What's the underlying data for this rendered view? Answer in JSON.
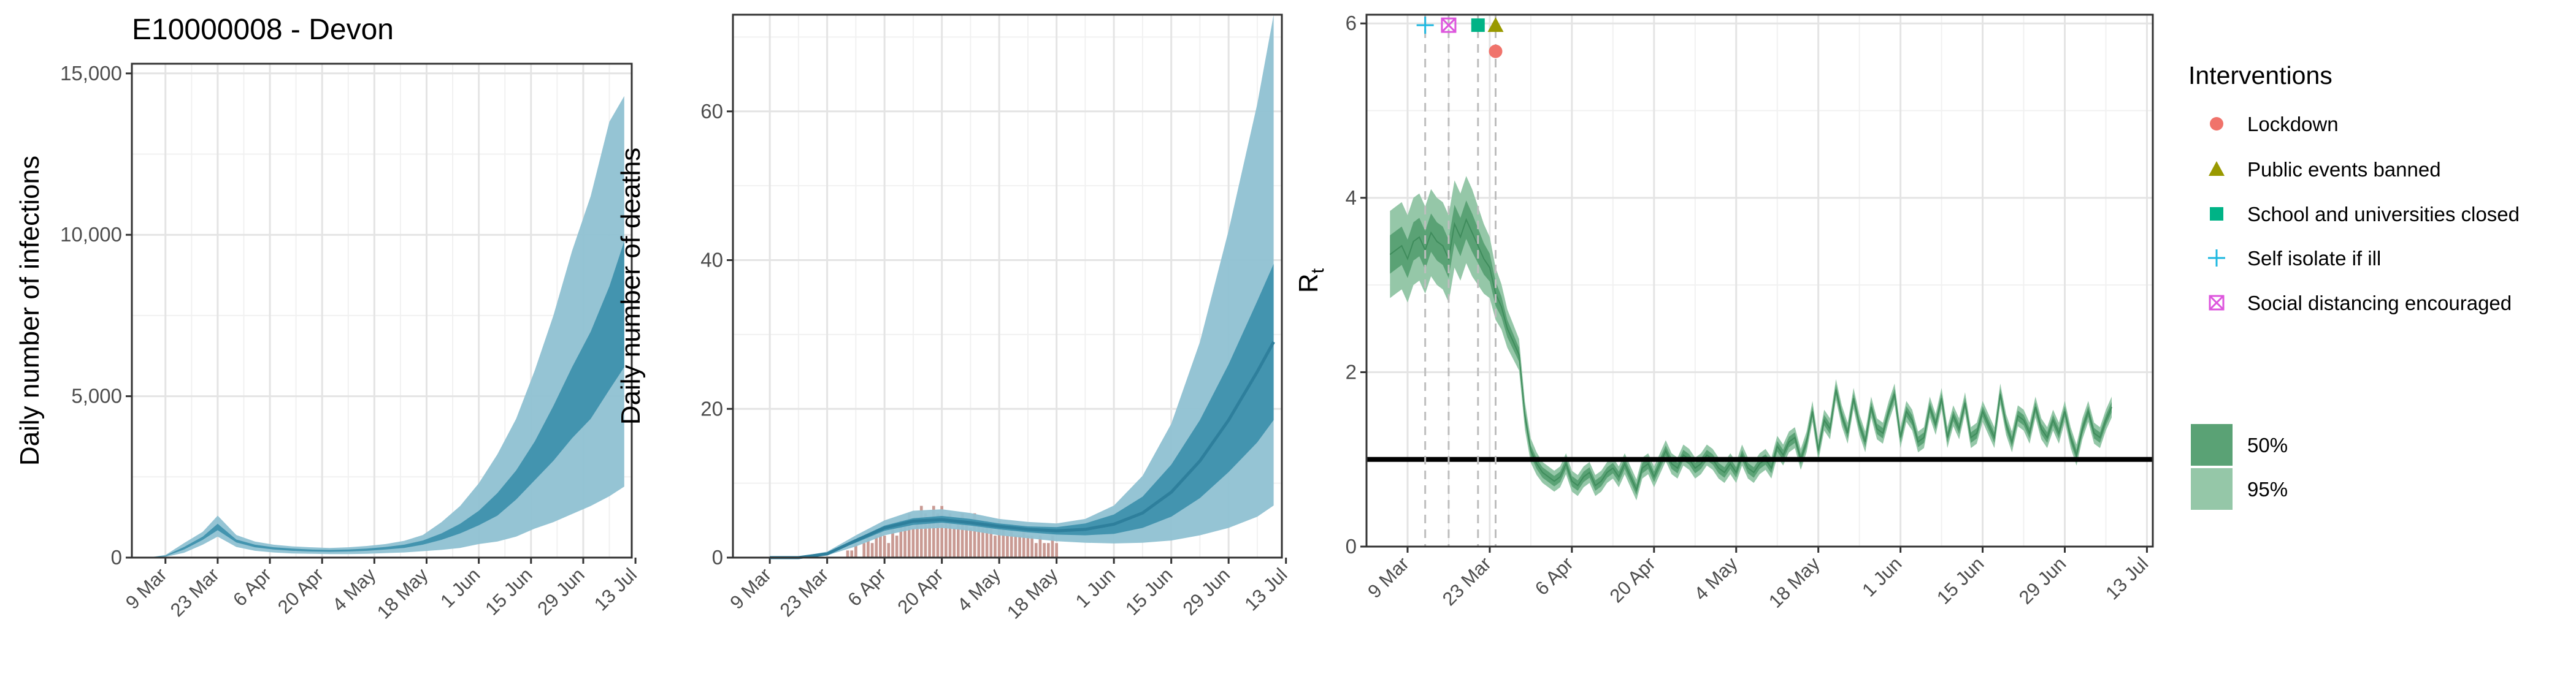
{
  "title": "E10000008 - Devon",
  "colors": {
    "infections_95": "#8fc1d2",
    "infections_50": "#3a8fab",
    "infections_line": "#2e7f9c",
    "deaths_95": "#8fc1d2",
    "deaths_50": "#3a8fab",
    "deaths_bar": "#c99a93",
    "rt_95": "#95c7a8",
    "rt_50": "#5aa275",
    "rt_line": "#3f8c5c",
    "panel_border": "#333333",
    "grid_major": "#e4e4e4",
    "grid_minor": "#f1f1f1",
    "lockdown": "#f0736b",
    "public_events": "#999900",
    "school": "#00b386",
    "self_isolate": "#1fb8e0",
    "social_distancing": "#dd55dd"
  },
  "chart_data": [
    {
      "id": "infections",
      "type": "area",
      "ylabel": "Daily number of infections",
      "xlabel": "",
      "x_tick_labels": [
        "9 Mar",
        "23 Mar",
        "6 Apr",
        "20 Apr",
        "4 May",
        "18 May",
        "1 Jun",
        "15 Jun",
        "29 Jun",
        "13 Jul"
      ],
      "y_tick_labels": [
        "0",
        "5,000",
        "10,000",
        "15,000"
      ],
      "xlim": [
        "2020-02-29",
        "2020-07-12"
      ],
      "ylim": [
        0,
        15300
      ],
      "grid": true,
      "x_dates": [
        "2020-03-04",
        "2020-03-09",
        "2020-03-14",
        "2020-03-19",
        "2020-03-23",
        "2020-03-28",
        "2020-04-02",
        "2020-04-07",
        "2020-04-12",
        "2020-04-17",
        "2020-04-22",
        "2020-04-27",
        "2020-05-02",
        "2020-05-07",
        "2020-05-12",
        "2020-05-17",
        "2020-05-22",
        "2020-05-27",
        "2020-06-01",
        "2020-06-06",
        "2020-06-11",
        "2020-06-16",
        "2020-06-21",
        "2020-06-26",
        "2020-07-01",
        "2020-07-06",
        "2020-07-10"
      ],
      "series": [
        {
          "band": "95%",
          "lower": [
            0,
            20,
            150,
            400,
            650,
            330,
            210,
            160,
            130,
            120,
            110,
            110,
            120,
            140,
            160,
            200,
            240,
            300,
            420,
            500,
            650,
            900,
            1100,
            1350,
            1600,
            1900,
            2200
          ],
          "upper": [
            0,
            80,
            450,
            800,
            1300,
            700,
            500,
            400,
            350,
            320,
            300,
            320,
            360,
            420,
            520,
            700,
            1100,
            1600,
            2300,
            3200,
            4300,
            5800,
            7500,
            9500,
            11200,
            13500,
            14300
          ]
        },
        {
          "band": "50%",
          "lower": [
            0,
            40,
            250,
            550,
            850,
            470,
            320,
            250,
            210,
            190,
            180,
            190,
            210,
            250,
            300,
            400,
            550,
            750,
            1000,
            1300,
            1800,
            2400,
            3000,
            3700,
            4300,
            5200,
            5900
          ],
          "upper": [
            0,
            60,
            330,
            650,
            1050,
            560,
            400,
            320,
            280,
            250,
            240,
            250,
            280,
            330,
            400,
            530,
            750,
            1050,
            1450,
            2000,
            2700,
            3600,
            4700,
            5900,
            7000,
            8400,
            9800
          ]
        }
      ]
    },
    {
      "id": "deaths",
      "type": "area",
      "ylabel": "Daily number of deaths",
      "xlabel": "",
      "x_tick_labels": [
        "9 Mar",
        "23 Mar",
        "6 Apr",
        "20 Apr",
        "4 May",
        "18 May",
        "1 Jun",
        "15 Jun",
        "29 Jun",
        "13 Jul"
      ],
      "y_tick_labels": [
        "0",
        "20",
        "40",
        "60"
      ],
      "xlim": [
        "2020-02-29",
        "2020-07-12"
      ],
      "ylim": [
        0,
        73
      ],
      "grid": true,
      "x_dates": [
        "2020-03-09",
        "2020-03-16",
        "2020-03-23",
        "2020-03-30",
        "2020-04-06",
        "2020-04-13",
        "2020-04-20",
        "2020-04-27",
        "2020-05-04",
        "2020-05-11",
        "2020-05-18",
        "2020-05-25",
        "2020-06-01",
        "2020-06-08",
        "2020-06-15",
        "2020-06-22",
        "2020-06-29",
        "2020-07-06",
        "2020-07-10"
      ],
      "series": [
        {
          "band": "95%",
          "lower": [
            0,
            0,
            0.3,
            1.5,
            3,
            3.8,
            4,
            3.6,
            3,
            2.6,
            2.2,
            2,
            1.9,
            2,
            2.3,
            3,
            4,
            5.5,
            7
          ],
          "upper": [
            0,
            0.1,
            0.8,
            3,
            5,
            6.3,
            6.5,
            6,
            5.2,
            4.8,
            4.6,
            5.2,
            7,
            11,
            18,
            29,
            44,
            61,
            73
          ]
        },
        {
          "band": "50%",
          "lower": [
            0,
            0,
            0.5,
            2,
            3.6,
            4.4,
            4.7,
            4.3,
            3.8,
            3.4,
            3.1,
            3,
            3.2,
            4,
            5.5,
            8,
            11.5,
            15.5,
            18.5
          ],
          "upper": [
            0,
            0,
            0.6,
            2.5,
            4.3,
            5.3,
            5.6,
            5.2,
            4.6,
            4.2,
            4.1,
            4.6,
            5.8,
            8.2,
            12.5,
            18.5,
            26,
            34.5,
            39.5
          ]
        },
        {
          "band": "median",
          "values": [
            0,
            0,
            0.5,
            2.3,
            4,
            4.9,
            5.1,
            4.7,
            4.2,
            3.8,
            3.6,
            3.8,
            4.5,
            6,
            8.8,
            13,
            18.5,
            25,
            29
          ]
        }
      ],
      "bars_observed": {
        "start": "2020-03-28",
        "values": [
          1,
          1,
          2,
          0,
          2,
          3,
          2,
          3,
          4,
          3,
          2,
          4,
          3,
          5,
          5,
          6,
          4,
          5,
          7,
          6,
          5,
          7,
          6,
          7,
          5,
          6,
          4,
          5,
          6,
          5,
          4,
          6,
          5,
          4,
          5,
          4,
          3,
          5,
          4,
          3,
          4,
          3,
          3,
          4,
          3,
          3,
          2,
          3,
          2,
          2,
          3,
          2
        ]
      }
    },
    {
      "id": "rt",
      "type": "line",
      "ylabel": "R",
      "ylabel_sub": "t",
      "xlabel": "",
      "x_tick_labels": [
        "9 Mar",
        "23 Mar",
        "6 Apr",
        "20 Apr",
        "4 May",
        "18 May",
        "1 Jun",
        "15 Jun",
        "29 Jun",
        "13 Jul"
      ],
      "y_tick_labels": [
        "0",
        "2",
        "4",
        "6"
      ],
      "xlim": [
        "2020-03-02",
        "2020-07-14"
      ],
      "ylim": [
        0,
        6.1
      ],
      "grid": true,
      "reference_line": 1,
      "rt_start": "2020-03-06",
      "rt_median": [
        3.35,
        3.4,
        3.45,
        3.3,
        3.5,
        3.55,
        3.4,
        3.6,
        3.5,
        3.45,
        3.3,
        3.7,
        3.55,
        3.75,
        3.6,
        3.45,
        3.3,
        3.2,
        2.9,
        2.75,
        2.5,
        2.35,
        2.2,
        1.5,
        1.1,
        0.95,
        0.85,
        0.8,
        0.75,
        0.8,
        0.95,
        0.75,
        0.7,
        0.8,
        0.85,
        0.7,
        0.75,
        0.85,
        0.9,
        0.8,
        0.95,
        0.8,
        0.65,
        0.9,
        0.95,
        0.8,
        0.95,
        1.1,
        0.95,
        0.9,
        1.05,
        1.0,
        0.9,
        0.95,
        1.05,
        1.0,
        0.9,
        0.85,
        0.95,
        0.85,
        1.05,
        0.9,
        0.85,
        0.95,
        1.0,
        0.9,
        1.15,
        1.05,
        1.2,
        1.25,
        1.0,
        1.2,
        1.55,
        1.1,
        1.45,
        1.35,
        1.8,
        1.5,
        1.3,
        1.7,
        1.4,
        1.2,
        1.6,
        1.35,
        1.3,
        1.55,
        1.75,
        1.25,
        1.55,
        1.45,
        1.2,
        1.25,
        1.6,
        1.4,
        1.7,
        1.25,
        1.5,
        1.35,
        1.65,
        1.25,
        1.3,
        1.55,
        1.4,
        1.25,
        1.75,
        1.4,
        1.2,
        1.5,
        1.45,
        1.3,
        1.6,
        1.35,
        1.25,
        1.45,
        1.3,
        1.55,
        1.25,
        1.05,
        1.35,
        1.55,
        1.3,
        1.25,
        1.45,
        1.6
      ],
      "band_50_halfwidth": [
        0.22,
        0.22,
        0.22,
        0.22,
        0.22,
        0.22,
        0.22,
        0.22,
        0.22,
        0.22,
        0.22,
        0.22,
        0.22,
        0.22,
        0.22,
        0.2,
        0.18,
        0.16,
        0.14,
        0.12,
        0.1,
        0.09,
        0.08,
        0.07,
        0.06,
        0.06,
        0.06,
        0.06,
        0.06,
        0.06,
        0.06,
        0.06,
        0.06,
        0.06,
        0.06,
        0.06,
        0.06,
        0.06,
        0.06,
        0.06,
        0.06,
        0.06,
        0.06,
        0.06,
        0.06,
        0.06,
        0.06,
        0.06,
        0.06,
        0.06,
        0.06,
        0.06,
        0.06,
        0.06,
        0.06,
        0.06,
        0.06,
        0.06,
        0.06,
        0.06,
        0.06,
        0.06,
        0.06,
        0.06,
        0.06,
        0.06,
        0.06,
        0.06,
        0.06,
        0.06,
        0.06,
        0.06,
        0.06,
        0.06,
        0.06,
        0.06,
        0.06,
        0.06,
        0.06,
        0.06,
        0.06,
        0.06,
        0.06,
        0.06,
        0.06,
        0.06,
        0.06,
        0.06,
        0.06,
        0.06,
        0.06,
        0.06,
        0.06,
        0.06,
        0.06,
        0.06,
        0.06,
        0.06,
        0.06,
        0.06,
        0.06,
        0.06,
        0.06,
        0.06,
        0.06,
        0.06,
        0.06,
        0.06,
        0.06,
        0.06,
        0.06,
        0.06,
        0.06,
        0.06,
        0.06,
        0.06,
        0.06,
        0.06,
        0.06,
        0.06,
        0.06,
        0.06,
        0.06,
        0.06
      ],
      "band_95_halfwidth": [
        0.5,
        0.5,
        0.5,
        0.5,
        0.5,
        0.5,
        0.5,
        0.5,
        0.5,
        0.5,
        0.5,
        0.5,
        0.5,
        0.5,
        0.5,
        0.45,
        0.4,
        0.35,
        0.3,
        0.26,
        0.22,
        0.2,
        0.18,
        0.16,
        0.14,
        0.13,
        0.12,
        0.12,
        0.12,
        0.12,
        0.12,
        0.12,
        0.12,
        0.12,
        0.12,
        0.12,
        0.12,
        0.12,
        0.12,
        0.12,
        0.12,
        0.12,
        0.12,
        0.12,
        0.12,
        0.12,
        0.12,
        0.12,
        0.12,
        0.12,
        0.12,
        0.12,
        0.12,
        0.12,
        0.12,
        0.12,
        0.12,
        0.12,
        0.12,
        0.12,
        0.12,
        0.12,
        0.12,
        0.12,
        0.12,
        0.12,
        0.12,
        0.12,
        0.12,
        0.12,
        0.12,
        0.12,
        0.12,
        0.12,
        0.12,
        0.12,
        0.12,
        0.12,
        0.12,
        0.12,
        0.12,
        0.12,
        0.12,
        0.12,
        0.12,
        0.12,
        0.12,
        0.12,
        0.12,
        0.12,
        0.12,
        0.12,
        0.12,
        0.12,
        0.12,
        0.12,
        0.12,
        0.12,
        0.12,
        0.12,
        0.12,
        0.12,
        0.12,
        0.12,
        0.12,
        0.12,
        0.12,
        0.12,
        0.12,
        0.12,
        0.12,
        0.12,
        0.12,
        0.12,
        0.12,
        0.12,
        0.12,
        0.12,
        0.12,
        0.12,
        0.12,
        0.12,
        0.12,
        0.12
      ],
      "interventions": [
        {
          "name": "Self isolate if ill",
          "date": "2020-03-12",
          "shape": "plus",
          "level": 5.98
        },
        {
          "name": "Social distancing encouraged",
          "date": "2020-03-16",
          "shape": "square-x",
          "level": 5.98
        },
        {
          "name": "School and universities closed",
          "date": "2020-03-21",
          "shape": "square",
          "level": 5.98
        },
        {
          "name": "Public events banned",
          "date": "2020-03-24",
          "shape": "triangle",
          "level": 5.98
        },
        {
          "name": "Lockdown",
          "date": "2020-03-24",
          "shape": "circle",
          "level": 5.68
        }
      ]
    }
  ],
  "legend": {
    "title": "Interventions",
    "items": [
      {
        "label": "Lockdown",
        "shape": "circle"
      },
      {
        "label": "Public events banned",
        "shape": "triangle"
      },
      {
        "label": "School and universities closed",
        "shape": "square"
      },
      {
        "label": "Self isolate if ill",
        "shape": "plus"
      },
      {
        "label": "Social distancing encouraged",
        "shape": "square-x"
      }
    ],
    "band_items": [
      {
        "label": "50%"
      },
      {
        "label": "95%"
      }
    ]
  }
}
